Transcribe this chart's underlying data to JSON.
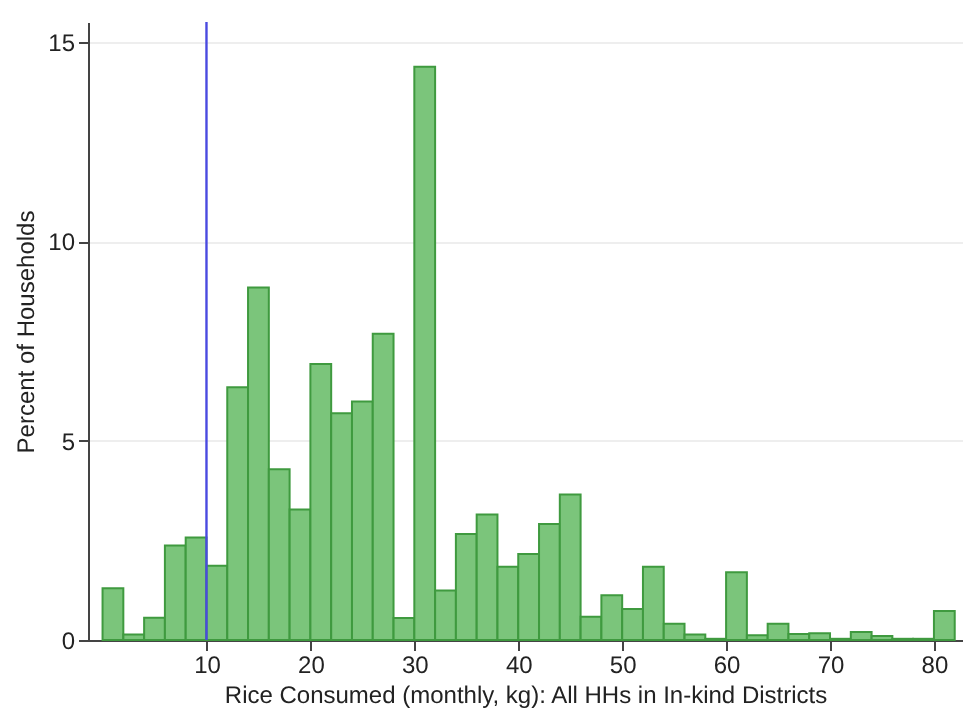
{
  "chart_data": {
    "type": "histogram",
    "xlabel": "Rice Consumed (monthly, kg): All HHs in In-kind Districts",
    "ylabel": "Percent of Households",
    "bins": [
      0,
      2,
      4,
      6,
      8,
      10,
      12,
      14,
      16,
      18,
      20,
      22,
      24,
      26,
      28,
      30,
      32,
      34,
      36,
      38,
      40,
      42,
      44,
      46,
      48,
      50,
      52,
      54,
      56,
      58,
      60,
      62,
      64,
      66,
      68,
      70,
      72,
      74,
      76,
      78,
      80,
      82
    ],
    "values": [
      1.3,
      0.14,
      0.56,
      2.37,
      2.57,
      1.86,
      6.34,
      8.84,
      4.28,
      3.27,
      6.92,
      5.69,
      5.98,
      7.68,
      0.55,
      14.38,
      1.24,
      2.66,
      3.15,
      1.84,
      2.16,
      2.91,
      3.65,
      0.58,
      1.12,
      0.78,
      1.84,
      0.41,
      0.14,
      0.03,
      1.7,
      0.12,
      0.41,
      0.15,
      0.17,
      0.03,
      0.2,
      0.1,
      0.03,
      0.03,
      0.73
    ],
    "color": "#74c274",
    "xlim": [
      -1.4,
      82.7
    ],
    "ylim": [
      0,
      15.5
    ],
    "xticks": [
      10,
      20,
      30,
      40,
      50,
      60,
      70,
      80
    ],
    "yticks": [
      0,
      5,
      10,
      15
    ],
    "grid": "y",
    "ref_lines": [
      {
        "axis": "x",
        "value": 10,
        "color": "#4a4ae0"
      }
    ]
  }
}
